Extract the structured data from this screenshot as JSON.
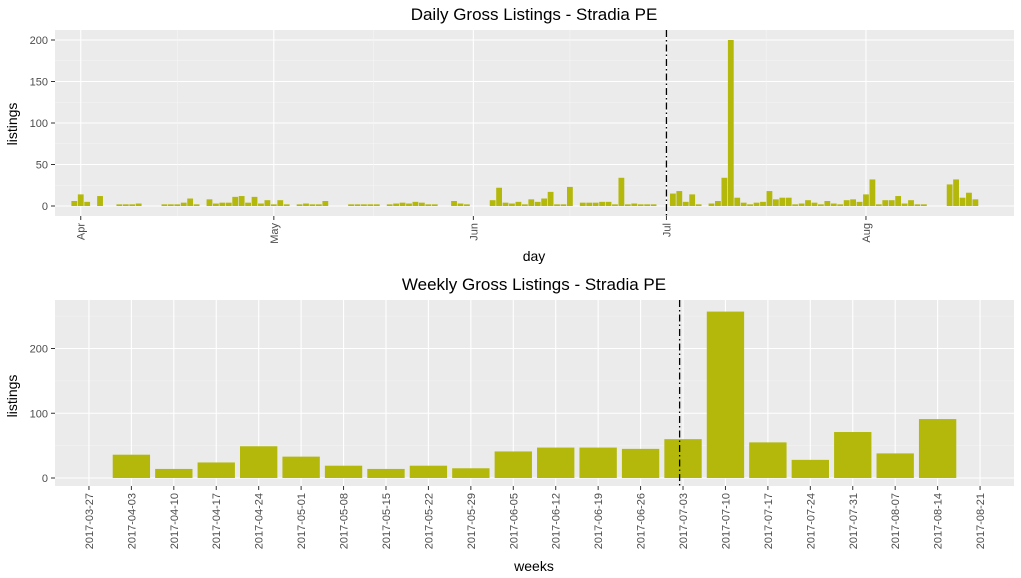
{
  "chart_data": [
    {
      "type": "bar",
      "title": "Daily Gross Listings - Stradia PE",
      "xlabel": "day",
      "ylabel": "listings",
      "ylim": [
        0,
        200
      ],
      "yticks": [
        0,
        50,
        100,
        150,
        200
      ],
      "x_start": "2017-03-28",
      "x_end": "2017-08-24",
      "month_ticks": [
        {
          "label": "Apr",
          "date": "2017-04-01"
        },
        {
          "label": "May",
          "date": "2017-05-01"
        },
        {
          "label": "Jun",
          "date": "2017-06-01"
        },
        {
          "label": "Jul",
          "date": "2017-07-01"
        },
        {
          "label": "Aug",
          "date": "2017-08-01"
        }
      ],
      "vline_date": "2017-07-01",
      "bar_color": "#b3b80a",
      "days": [
        "2017-03-31",
        "2017-04-01",
        "2017-04-02",
        "2017-04-04",
        "2017-04-07",
        "2017-04-08",
        "2017-04-09",
        "2017-04-10",
        "2017-04-14",
        "2017-04-15",
        "2017-04-16",
        "2017-04-17",
        "2017-04-18",
        "2017-04-19",
        "2017-04-21",
        "2017-04-22",
        "2017-04-23",
        "2017-04-24",
        "2017-04-25",
        "2017-04-26",
        "2017-04-27",
        "2017-04-28",
        "2017-04-29",
        "2017-04-30",
        "2017-05-01",
        "2017-05-02",
        "2017-05-03",
        "2017-05-05",
        "2017-05-06",
        "2017-05-07",
        "2017-05-08",
        "2017-05-09",
        "2017-05-13",
        "2017-05-14",
        "2017-05-15",
        "2017-05-16",
        "2017-05-17",
        "2017-05-19",
        "2017-05-20",
        "2017-05-21",
        "2017-05-22",
        "2017-05-23",
        "2017-05-24",
        "2017-05-25",
        "2017-05-26",
        "2017-05-29",
        "2017-05-30",
        "2017-05-31",
        "2017-06-04",
        "2017-06-05",
        "2017-06-06",
        "2017-06-07",
        "2017-06-08",
        "2017-06-09",
        "2017-06-10",
        "2017-06-11",
        "2017-06-12",
        "2017-06-13",
        "2017-06-14",
        "2017-06-15",
        "2017-06-16",
        "2017-06-18",
        "2017-06-19",
        "2017-06-20",
        "2017-06-21",
        "2017-06-22",
        "2017-06-23",
        "2017-06-24",
        "2017-06-25",
        "2017-06-26",
        "2017-06-27",
        "2017-06-28",
        "2017-06-29",
        "2017-07-02",
        "2017-07-03",
        "2017-07-04",
        "2017-07-05",
        "2017-07-06",
        "2017-07-08",
        "2017-07-09",
        "2017-07-10",
        "2017-07-11",
        "2017-07-12",
        "2017-07-13",
        "2017-07-14",
        "2017-07-15",
        "2017-07-16",
        "2017-07-17",
        "2017-07-18",
        "2017-07-19",
        "2017-07-20",
        "2017-07-21",
        "2017-07-22",
        "2017-07-23",
        "2017-07-24",
        "2017-07-25",
        "2017-07-26",
        "2017-07-27",
        "2017-07-28",
        "2017-07-29",
        "2017-07-30",
        "2017-07-31",
        "2017-08-01",
        "2017-08-02",
        "2017-08-03",
        "2017-08-04",
        "2017-08-05",
        "2017-08-06",
        "2017-08-07",
        "2017-08-08",
        "2017-08-09",
        "2017-08-10",
        "2017-08-14",
        "2017-08-15",
        "2017-08-16",
        "2017-08-17",
        "2017-08-18"
      ],
      "values": [
        6,
        14,
        5,
        12,
        2,
        2,
        2,
        3,
        2,
        2,
        2,
        4,
        9,
        2,
        8,
        3,
        4,
        4,
        11,
        12,
        4,
        11,
        3,
        7,
        2,
        7,
        2,
        2,
        3,
        2,
        2,
        6,
        2,
        2,
        2,
        2,
        2,
        2,
        3,
        4,
        3,
        5,
        4,
        2,
        2,
        6,
        3,
        2,
        7,
        22,
        4,
        3,
        5,
        2,
        8,
        5,
        9,
        17,
        2,
        2,
        23,
        4,
        4,
        4,
        5,
        5,
        2,
        34,
        2,
        3,
        2,
        2,
        2,
        15,
        18,
        5,
        14,
        2,
        3,
        6,
        34,
        200,
        10,
        4,
        2,
        4,
        5,
        18,
        8,
        10,
        10,
        2,
        3,
        7,
        4,
        2,
        6,
        3,
        2,
        7,
        8,
        5,
        14,
        32,
        2,
        7,
        7,
        12,
        3,
        7,
        2,
        2,
        26,
        32,
        10,
        16,
        8
      ]
    },
    {
      "type": "bar",
      "title": "Weekly Gross Listings - Stradia PE",
      "xlabel": "weeks",
      "ylabel": "listings",
      "ylim": [
        0,
        260
      ],
      "yticks": [
        0,
        100,
        200
      ],
      "categories": [
        "2017-03-27",
        "2017-04-03",
        "2017-04-10",
        "2017-04-17",
        "2017-04-24",
        "2017-05-01",
        "2017-05-08",
        "2017-05-15",
        "2017-05-22",
        "2017-05-29",
        "2017-06-05",
        "2017-06-12",
        "2017-06-19",
        "2017-06-26",
        "2017-07-03",
        "2017-07-10",
        "2017-07-17",
        "2017-07-24",
        "2017-07-31",
        "2017-08-07",
        "2017-08-14",
        "2017-08-21"
      ],
      "values": [
        null,
        36,
        14,
        24,
        49,
        33,
        19,
        14,
        19,
        15,
        41,
        47,
        47,
        45,
        60,
        257,
        55,
        28,
        71,
        38,
        91,
        null
      ],
      "vline_category": "2017-07-03",
      "bar_color": "#b3b80a"
    }
  ]
}
